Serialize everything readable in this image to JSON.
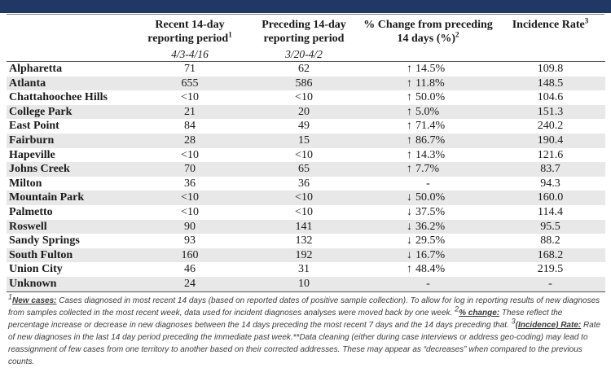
{
  "columns": {
    "col1": "Recent 14-day reporting period",
    "col1_sup": "1",
    "col2": "Preceding 14-day reporting period",
    "col3": "% Change from preceding 14 days (%)",
    "col3_sup": "2",
    "col4": "Incidence Rate",
    "col4_sup": "3"
  },
  "periods": {
    "recent": "4/3-4/16",
    "preceding": "3/20-4/2"
  },
  "rows": [
    {
      "name": "Alpharetta",
      "recent": "71",
      "preceding": "62",
      "dir": "up",
      "change": "14.5%",
      "rate": "109.8"
    },
    {
      "name": "Atlanta",
      "recent": "655",
      "preceding": "586",
      "dir": "up",
      "change": "11.8%",
      "rate": "148.5"
    },
    {
      "name": "Chattahoochee Hills",
      "recent": "<10",
      "preceding": "<10",
      "dir": "up",
      "change": "50.0%",
      "rate": "104.6"
    },
    {
      "name": "College Park",
      "recent": "21",
      "preceding": "20",
      "dir": "up",
      "change": "5.0%",
      "rate": "151.3"
    },
    {
      "name": "East Point",
      "recent": "84",
      "preceding": "49",
      "dir": "up",
      "change": "71.4%",
      "rate": "240.2"
    },
    {
      "name": "Fairburn",
      "recent": "28",
      "preceding": "15",
      "dir": "up",
      "change": "86.7%",
      "rate": "190.4"
    },
    {
      "name": "Hapeville",
      "recent": "<10",
      "preceding": "<10",
      "dir": "up",
      "change": "14.3%",
      "rate": "121.6"
    },
    {
      "name": "Johns Creek",
      "recent": "70",
      "preceding": "65",
      "dir": "up",
      "change": "7.7%",
      "rate": "83.7"
    },
    {
      "name": "Milton",
      "recent": "36",
      "preceding": "36",
      "dir": "none",
      "change": "-",
      "rate": "94.3"
    },
    {
      "name": "Mountain Park",
      "recent": "<10",
      "preceding": "<10",
      "dir": "down",
      "change": "50.0%",
      "rate": "160.0"
    },
    {
      "name": "Palmetto",
      "recent": "<10",
      "preceding": "<10",
      "dir": "down",
      "change": "37.5%",
      "rate": "114.4"
    },
    {
      "name": "Roswell",
      "recent": "90",
      "preceding": "141",
      "dir": "down",
      "change": "36.2%",
      "rate": "95.5"
    },
    {
      "name": "Sandy Springs",
      "recent": "93",
      "preceding": "132",
      "dir": "down",
      "change": "29.5%",
      "rate": "88.2"
    },
    {
      "name": "South Fulton",
      "recent": "160",
      "preceding": "192",
      "dir": "down",
      "change": "16.7%",
      "rate": "168.2"
    },
    {
      "name": "Union City",
      "recent": "46",
      "preceding": "31",
      "dir": "up",
      "change": "48.4%",
      "rate": "219.5"
    },
    {
      "name": "Unknown",
      "recent": "24",
      "preceding": "10",
      "dir": "none",
      "change": "-",
      "rate": "-"
    }
  ],
  "arrows": {
    "up": "↑",
    "down": "↓",
    "none": ""
  },
  "footnote": {
    "sup1": "1",
    "label1": "New cases:",
    "text1": " Cases diagnosed in most recent 14 days (based on reported dates of positive sample collection). To allow for log in reporting results of new diagnoses from samples collected in the most recent week, data used for incident diagnoses analyses were moved back by one week. ",
    "sup2": "2",
    "label2": "% change:",
    "text2": " These reflect the percentage increase or decrease in new diagnoses between the 14 days preceding the most recent 7 days and the 14 days preceding that. ",
    "sup3": "3",
    "label3": "(Incidence) Rate:",
    "text3": " Rate of new diagnoses in the last 14 day period preceding the immediate past week.**Data cleaning (either during case interviews or address geo-coding) may lead to reassignment of few cases from one territory to another based on their corrected addresses. These may appear as “decreases” when compared to the previous counts."
  },
  "colors": {
    "header_bar": "#1f3864",
    "zebra": "#e8e8e8"
  }
}
